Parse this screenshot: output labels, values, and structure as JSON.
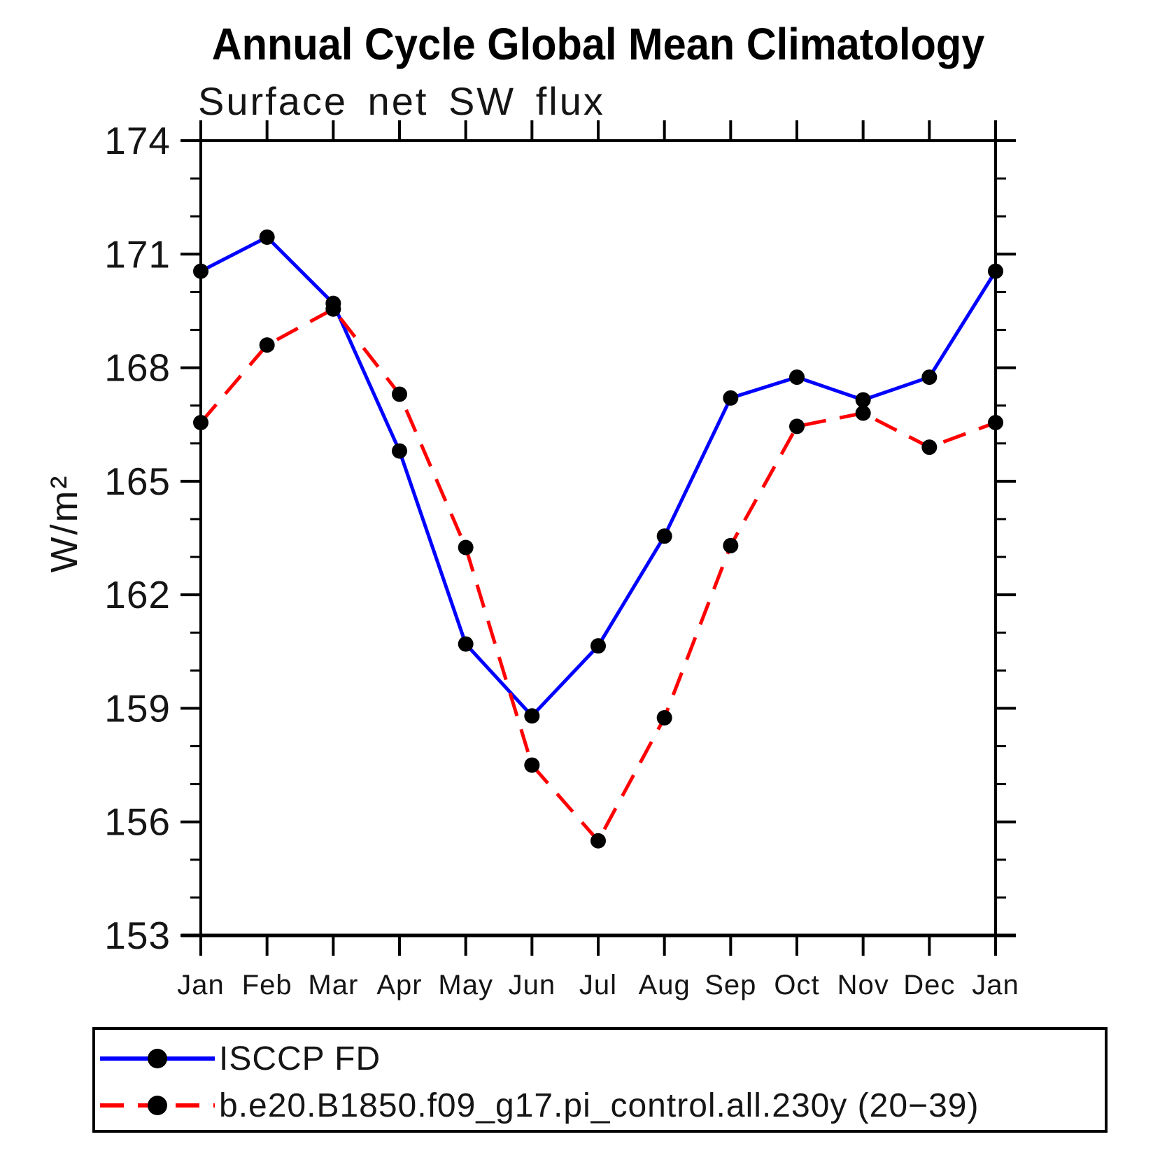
{
  "chart_data": {
    "type": "line",
    "title": "Annual Cycle Global Mean Climatology",
    "subtitle": "Surface net SW flux",
    "ylabel": "W/m²",
    "xlabel": "",
    "categories": [
      "Jan",
      "Feb",
      "Mar",
      "Apr",
      "May",
      "Jun",
      "Jul",
      "Aug",
      "Sep",
      "Oct",
      "Nov",
      "Dec",
      "Jan"
    ],
    "ylim": [
      153,
      174
    ],
    "yticks_major": [
      153,
      156,
      159,
      162,
      165,
      168,
      171,
      174
    ],
    "ytick_minor_step": 1,
    "grid": false,
    "legend_position": "bottom-box",
    "axis_color": "#000000",
    "background": "#ffffff",
    "series": [
      {
        "name": "ISCCP FD",
        "color": "#0000ff",
        "line_style": "solid",
        "marker": "circle",
        "marker_color": "#000000",
        "values": [
          170.55,
          171.45,
          169.7,
          165.8,
          160.7,
          158.8,
          160.65,
          163.55,
          167.2,
          167.75,
          167.15,
          167.75,
          170.55
        ]
      },
      {
        "name": "b.e20.B1850.f09_g17.pi_control.all.230y (20−39)",
        "color": "#ff0000",
        "line_style": "dashed",
        "marker": "circle",
        "marker_color": "#000000",
        "values": [
          166.55,
          168.6,
          169.55,
          167.3,
          163.25,
          157.5,
          155.5,
          158.75,
          163.3,
          166.45,
          166.8,
          165.9,
          166.55
        ]
      }
    ]
  }
}
